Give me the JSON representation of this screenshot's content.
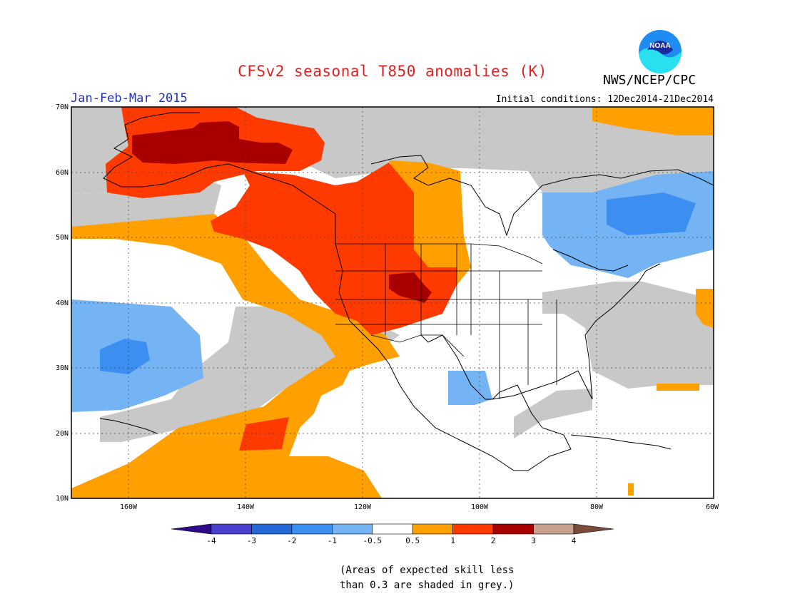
{
  "title": "CFSv2 seasonal T850 anomalies (K)",
  "period": "Jan-Feb-Mar 2015",
  "initial_conditions": "Initial conditions: 12Dec2014-21Dec2014",
  "agency": "NWS/NCEP/CPC",
  "logo_text": "NOAA",
  "note": {
    "line1": "(Areas of expected skill less",
    "line2": "than 0.3 are shaded in grey.)"
  },
  "map": {
    "lon_range": [
      -172,
      -60
    ],
    "lat_range": [
      10,
      70
    ],
    "lat_ticks": [
      "70N",
      "60N",
      "50N",
      "40N",
      "30N",
      "20N",
      "10N"
    ],
    "lon_ticks": [
      "160W",
      "140W",
      "120W",
      "100W",
      "80W",
      "60W"
    ],
    "grid": true
  },
  "legend": {
    "labels": [
      "-4",
      "-3",
      "-2",
      "-1",
      "-0.5",
      "0.5",
      "1",
      "2",
      "3",
      "4"
    ],
    "colors": [
      "#2d0a8a",
      "#4a3fcc",
      "#2468d8",
      "#3c8ff0",
      "#74b4f4",
      "#ffffff",
      "#ff9f00",
      "#ff3a00",
      "#a80000",
      "#c8a090",
      "#7a4a3a"
    ]
  },
  "colors": {
    "grey": "#c8c8c8",
    "title_red": "#e02020",
    "period_blue": "#2030c0"
  }
}
